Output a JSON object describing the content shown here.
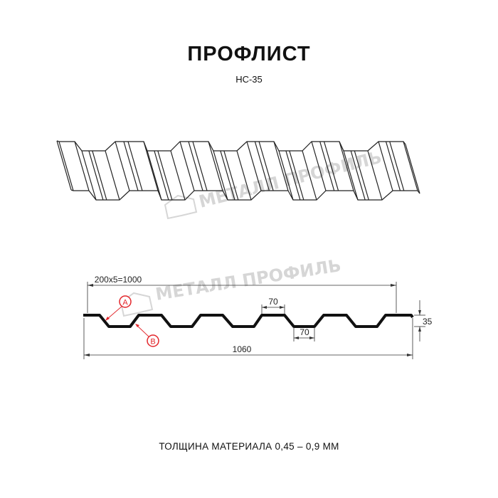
{
  "header": {
    "title": "ПРОФЛИСТ",
    "subtitle": "НС-35"
  },
  "watermark": "МЕТАЛЛ ПРОФИЛЬ",
  "dimensions": {
    "pitch_total": "200x5=1000",
    "top_flange": "70",
    "bottom_flange": "70",
    "height": "35",
    "overall_width": "1060"
  },
  "callouts": {
    "a": "A",
    "b": "B"
  },
  "footer": {
    "thickness": "ТОЛЩИНА МАТЕРИАЛА 0,45 – 0,9 ММ"
  },
  "colors": {
    "line": "#111111",
    "callout": "#e3262b",
    "watermark": "#d6d6d6"
  }
}
